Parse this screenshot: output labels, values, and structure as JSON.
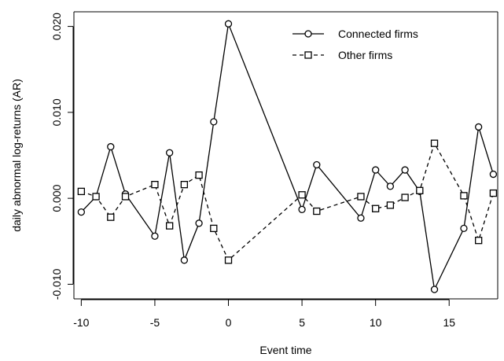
{
  "chart_data": {
    "type": "line",
    "title": "",
    "xlabel": "Event time",
    "ylabel": "daily abnormal log-returns (AR)",
    "xlim": [
      -10.5,
      18.3
    ],
    "ylim": [
      -0.0117,
      0.0217
    ],
    "xticks": [
      -10,
      -5,
      0,
      5,
      10,
      15
    ],
    "yticks": [
      -0.01,
      0.0,
      0.01,
      0.02
    ],
    "xtick_labels": [
      "-10",
      "-5",
      "0",
      "5",
      "10",
      "15"
    ],
    "ytick_labels": [
      "-0.010",
      "0.000",
      "0.010",
      "0.020"
    ],
    "grid": false,
    "legend_position": "top-right",
    "series": [
      {
        "name": "Connected firms",
        "marker": "circle",
        "line": "solid",
        "x": [
          -10,
          -9,
          -8,
          -7,
          -5,
          -4,
          -3,
          -2,
          -1,
          0,
          5,
          6,
          9,
          10,
          11,
          12,
          13,
          14,
          16,
          17,
          18
        ],
        "y": [
          -0.0016,
          0.0002,
          0.006,
          0.0005,
          -0.0044,
          0.0053,
          -0.0072,
          -0.0029,
          0.0089,
          0.0203,
          -0.0013,
          0.0039,
          -0.0023,
          0.0033,
          0.0014,
          0.0033,
          0.0008,
          -0.0106,
          -0.0035,
          0.0083,
          0.0028
        ]
      },
      {
        "name": "Other firms",
        "marker": "square",
        "line": "dashed",
        "x": [
          -10,
          -9,
          -8,
          -7,
          -5,
          -4,
          -3,
          -2,
          -1,
          0,
          5,
          6,
          9,
          10,
          11,
          12,
          13,
          14,
          16,
          17,
          18
        ],
        "y": [
          0.0008,
          0.0002,
          -0.0022,
          0.0002,
          0.0016,
          -0.0032,
          0.0016,
          0.0027,
          -0.0035,
          -0.0072,
          0.0004,
          -0.0015,
          0.0002,
          -0.0012,
          -0.0008,
          0.0001,
          0.0009,
          0.0064,
          0.0003,
          -0.0049,
          0.0006
        ]
      }
    ]
  }
}
